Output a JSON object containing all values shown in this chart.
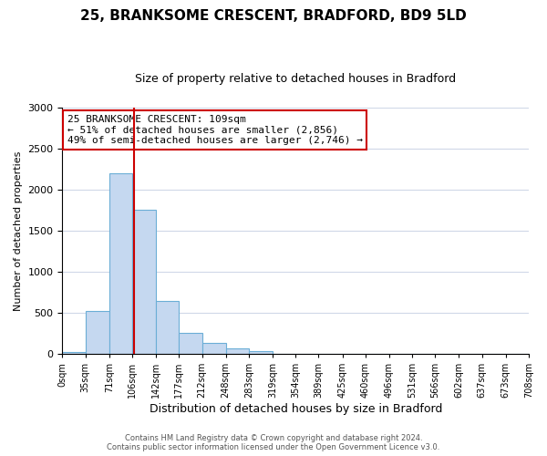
{
  "title": "25, BRANKSOME CRESCENT, BRADFORD, BD9 5LD",
  "subtitle": "Size of property relative to detached houses in Bradford",
  "xlabel": "Distribution of detached houses by size in Bradford",
  "ylabel": "Number of detached properties",
  "bin_edges": [
    0,
    35,
    71,
    106,
    142,
    177,
    212,
    248,
    283,
    319,
    354,
    389,
    425,
    460,
    496,
    531,
    566,
    602,
    637,
    673,
    708
  ],
  "bar_heights": [
    20,
    520,
    2200,
    1750,
    640,
    260,
    130,
    70,
    30,
    5,
    5,
    0,
    0,
    5,
    0,
    0,
    0,
    0,
    0,
    0
  ],
  "bar_color": "#c5d8f0",
  "bar_edge_color": "#6baed6",
  "vline_x": 109,
  "vline_color": "#cc0000",
  "annotation_text_line1": "25 BRANKSOME CRESCENT: 109sqm",
  "annotation_text_line2": "← 51% of detached houses are smaller (2,856)",
  "annotation_text_line3": "49% of semi-detached houses are larger (2,746) →",
  "box_edge_color": "#cc0000",
  "ylim": [
    0,
    3000
  ],
  "tick_labels": [
    "0sqm",
    "35sqm",
    "71sqm",
    "106sqm",
    "142sqm",
    "177sqm",
    "212sqm",
    "248sqm",
    "283sqm",
    "319sqm",
    "354sqm",
    "389sqm",
    "425sqm",
    "460sqm",
    "496sqm",
    "531sqm",
    "566sqm",
    "602sqm",
    "637sqm",
    "673sqm",
    "708sqm"
  ],
  "footer_line1": "Contains HM Land Registry data © Crown copyright and database right 2024.",
  "footer_line2": "Contains public sector information licensed under the Open Government Licence v3.0.",
  "background_color": "#ffffff",
  "grid_color": "#d0d8e8",
  "title_fontsize": 11,
  "subtitle_fontsize": 9,
  "ylabel_fontsize": 8,
  "xlabel_fontsize": 9,
  "tick_fontsize": 7,
  "ytick_fontsize": 8,
  "footer_fontsize": 6,
  "annot_fontsize": 8
}
